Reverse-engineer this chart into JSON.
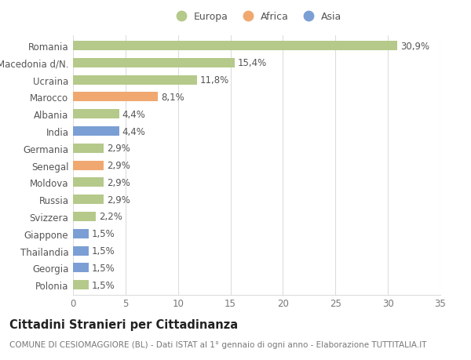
{
  "countries": [
    "Romania",
    "Macedonia d/N.",
    "Ucraina",
    "Marocco",
    "Albania",
    "India",
    "Germania",
    "Senegal",
    "Moldova",
    "Russia",
    "Svizzera",
    "Giappone",
    "Thailandia",
    "Georgia",
    "Polonia"
  ],
  "values": [
    30.9,
    15.4,
    11.8,
    8.1,
    4.4,
    4.4,
    2.9,
    2.9,
    2.9,
    2.9,
    2.2,
    1.5,
    1.5,
    1.5,
    1.5
  ],
  "labels": [
    "30,9%",
    "15,4%",
    "11,8%",
    "8,1%",
    "4,4%",
    "4,4%",
    "2,9%",
    "2,9%",
    "2,9%",
    "2,9%",
    "2,2%",
    "1,5%",
    "1,5%",
    "1,5%",
    "1,5%"
  ],
  "continents": [
    "Europa",
    "Europa",
    "Europa",
    "Africa",
    "Europa",
    "Asia",
    "Europa",
    "Africa",
    "Europa",
    "Europa",
    "Europa",
    "Asia",
    "Asia",
    "Asia",
    "Europa"
  ],
  "colors": {
    "Europa": "#b5c98a",
    "Africa": "#f0a870",
    "Asia": "#7b9fd4"
  },
  "title": "Cittadini Stranieri per Cittadinanza",
  "subtitle": "COMUNE DI CESIOMAGGIORE (BL) - Dati ISTAT al 1° gennaio di ogni anno - Elaborazione TUTTITALIA.IT",
  "xlim": [
    0,
    35
  ],
  "xticks": [
    0,
    5,
    10,
    15,
    20,
    25,
    30,
    35
  ],
  "background_color": "#ffffff",
  "grid_color": "#dddddd",
  "bar_height": 0.55,
  "label_fontsize": 8.5,
  "tick_fontsize": 8.5,
  "title_fontsize": 10.5,
  "subtitle_fontsize": 7.5
}
